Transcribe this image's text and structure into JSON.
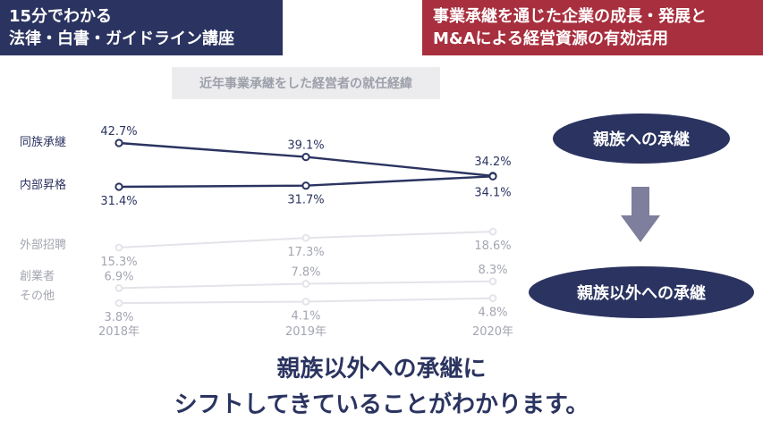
{
  "header": {
    "left": [
      "15分でわかる",
      "法律・白書・ガイドライン講座"
    ],
    "right": [
      "事業承継を通じた企業の成長・発展と",
      "M&Aによる経営資源の有効活用"
    ]
  },
  "colors": {
    "navy": "#2b3460",
    "crimson": "#a82f3e",
    "muted_line": "#e3e4e9",
    "muted_text": "#a3a6b0"
  },
  "chart_data": {
    "type": "line",
    "title": "近年事業承継をした経営者の就任経緯",
    "x": [
      "2018年",
      "2019年",
      "2020年"
    ],
    "xlabel": "",
    "ylabel": "",
    "ylim": [
      0,
      50
    ],
    "grid": false,
    "legend": "left-labels",
    "series": [
      {
        "name": "同族承継",
        "values": [
          42.7,
          39.1,
          34.2
        ],
        "labels": [
          "42.7%",
          "39.1%",
          "34.2%"
        ],
        "highlight": true
      },
      {
        "name": "内部昇格",
        "values": [
          31.4,
          31.7,
          34.1
        ],
        "labels": [
          "31.4%",
          "31.7%",
          "34.1%"
        ],
        "highlight": true
      },
      {
        "name": "外部招聘",
        "values": [
          15.3,
          17.3,
          18.6
        ],
        "labels": [
          "15.3%",
          "17.3%",
          "18.6%"
        ],
        "highlight": false
      },
      {
        "name": "創業者",
        "values": [
          6.9,
          7.8,
          8.3
        ],
        "labels": [
          "6.9%",
          "7.8%",
          "8.3%"
        ],
        "highlight": false
      },
      {
        "name": "その他",
        "values": [
          3.8,
          4.1,
          4.8
        ],
        "labels": [
          "3.8%",
          "4.1%",
          "4.8%"
        ],
        "highlight": false
      }
    ]
  },
  "flow": {
    "from": "親族への承継",
    "to": "親族以外への承継",
    "arrow_icon": "down-arrow-icon"
  },
  "conclusion": [
    "親族以外への承継に",
    "シフトしてきていることがわかります。"
  ]
}
